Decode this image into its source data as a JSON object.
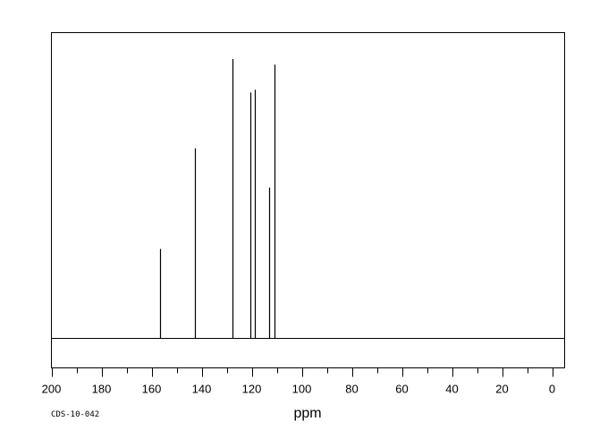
{
  "chart_data": {
    "type": "line",
    "title": "",
    "xlabel": "ppm",
    "ylabel": "",
    "xlim": [
      200,
      0
    ],
    "x_reversed": true,
    "x_ticks": [
      "200",
      "180",
      "160",
      "140",
      "120",
      "100",
      "80",
      "60",
      "40",
      "20",
      "0"
    ],
    "x_tick_values": [
      200,
      180,
      160,
      140,
      120,
      100,
      80,
      60,
      40,
      20,
      0
    ],
    "minor_tick_step": 10,
    "grid": false,
    "y_range": [
      0,
      1
    ],
    "peaks": [
      {
        "ppm": 156.6,
        "intensity": 0.32
      },
      {
        "ppm": 142.7,
        "intensity": 0.68
      },
      {
        "ppm": 127.6,
        "intensity": 1.0
      },
      {
        "ppm": 120.5,
        "intensity": 0.88
      },
      {
        "ppm": 118.7,
        "intensity": 0.89
      },
      {
        "ppm": 112.9,
        "intensity": 0.54
      },
      {
        "ppm": 110.8,
        "intensity": 0.98
      }
    ],
    "code_label": "CDS-10-042"
  }
}
